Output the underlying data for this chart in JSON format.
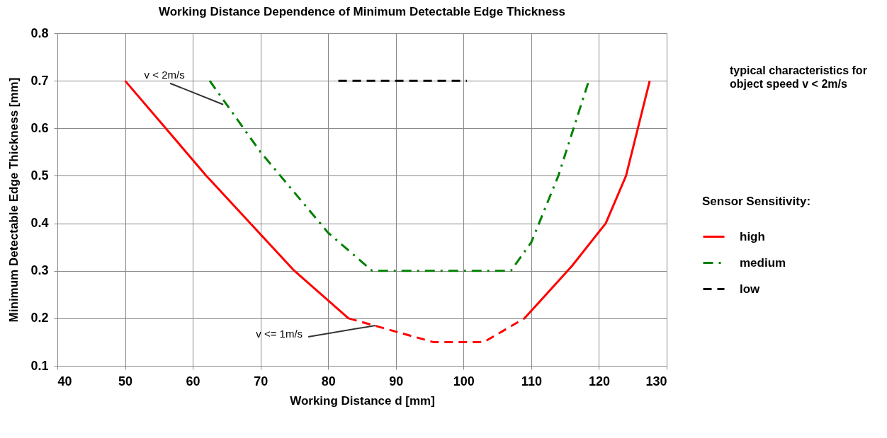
{
  "chart_data": {
    "type": "line",
    "title": "Working Distance Dependence of Minimum Detectable Edge Thickness",
    "xlabel": "Working Distance d   [mm]",
    "ylabel": "Minimum Detectable Edge Thickness  [mm]",
    "legend_title": "Sensor Sensitivity:",
    "legend": "right",
    "grid": true,
    "xlim": [
      40,
      130
    ],
    "xticks": [
      40,
      50,
      60,
      70,
      80,
      90,
      100,
      110,
      120,
      130
    ],
    "ylim": [
      0.1,
      0.8
    ],
    "yticks": [
      0.1,
      0.2,
      0.3,
      0.4,
      0.5,
      0.6,
      0.7,
      0.8
    ],
    "series": [
      {
        "name": "high",
        "color": "#ff0000",
        "line_style": "solid",
        "x": [
          50,
          62,
          75,
          83,
          95.5,
          103,
          109,
          116,
          121,
          124,
          127.5
        ],
        "values": [
          0.7,
          0.5,
          0.3,
          0.2,
          null,
          null,
          0.2,
          0.31,
          0.4,
          0.5,
          0.7
        ]
      },
      {
        "name": "medium",
        "color": "#008000",
        "line_style": "dashdot",
        "x": [
          62.5,
          70,
          80,
          86.5,
          107,
          110,
          114,
          118.5
        ],
        "values": [
          0.7,
          0.55,
          0.38,
          0.3,
          0.3,
          0.36,
          0.5,
          0.7
        ]
      },
      {
        "name": "low",
        "color": "#000000",
        "line_style": "dashed",
        "x": [
          81.5,
          100.5
        ],
        "values": [
          0.7,
          0.7
        ]
      },
      {
        "color": "#ff0000",
        "line_style": "dashed",
        "x": [
          83,
          95.5,
          103,
          109
        ],
        "values": [
          0.2,
          0.15,
          0.15,
          0.2
        ]
      }
    ],
    "annotations": [
      {
        "text": "v < 2m/s",
        "x": 64.5,
        "y": 0.65
      },
      {
        "text": "v <= 1m/s",
        "x": 87,
        "y": 0.185
      },
      "typical characteristics for object speed v < 2m/s"
    ]
  }
}
